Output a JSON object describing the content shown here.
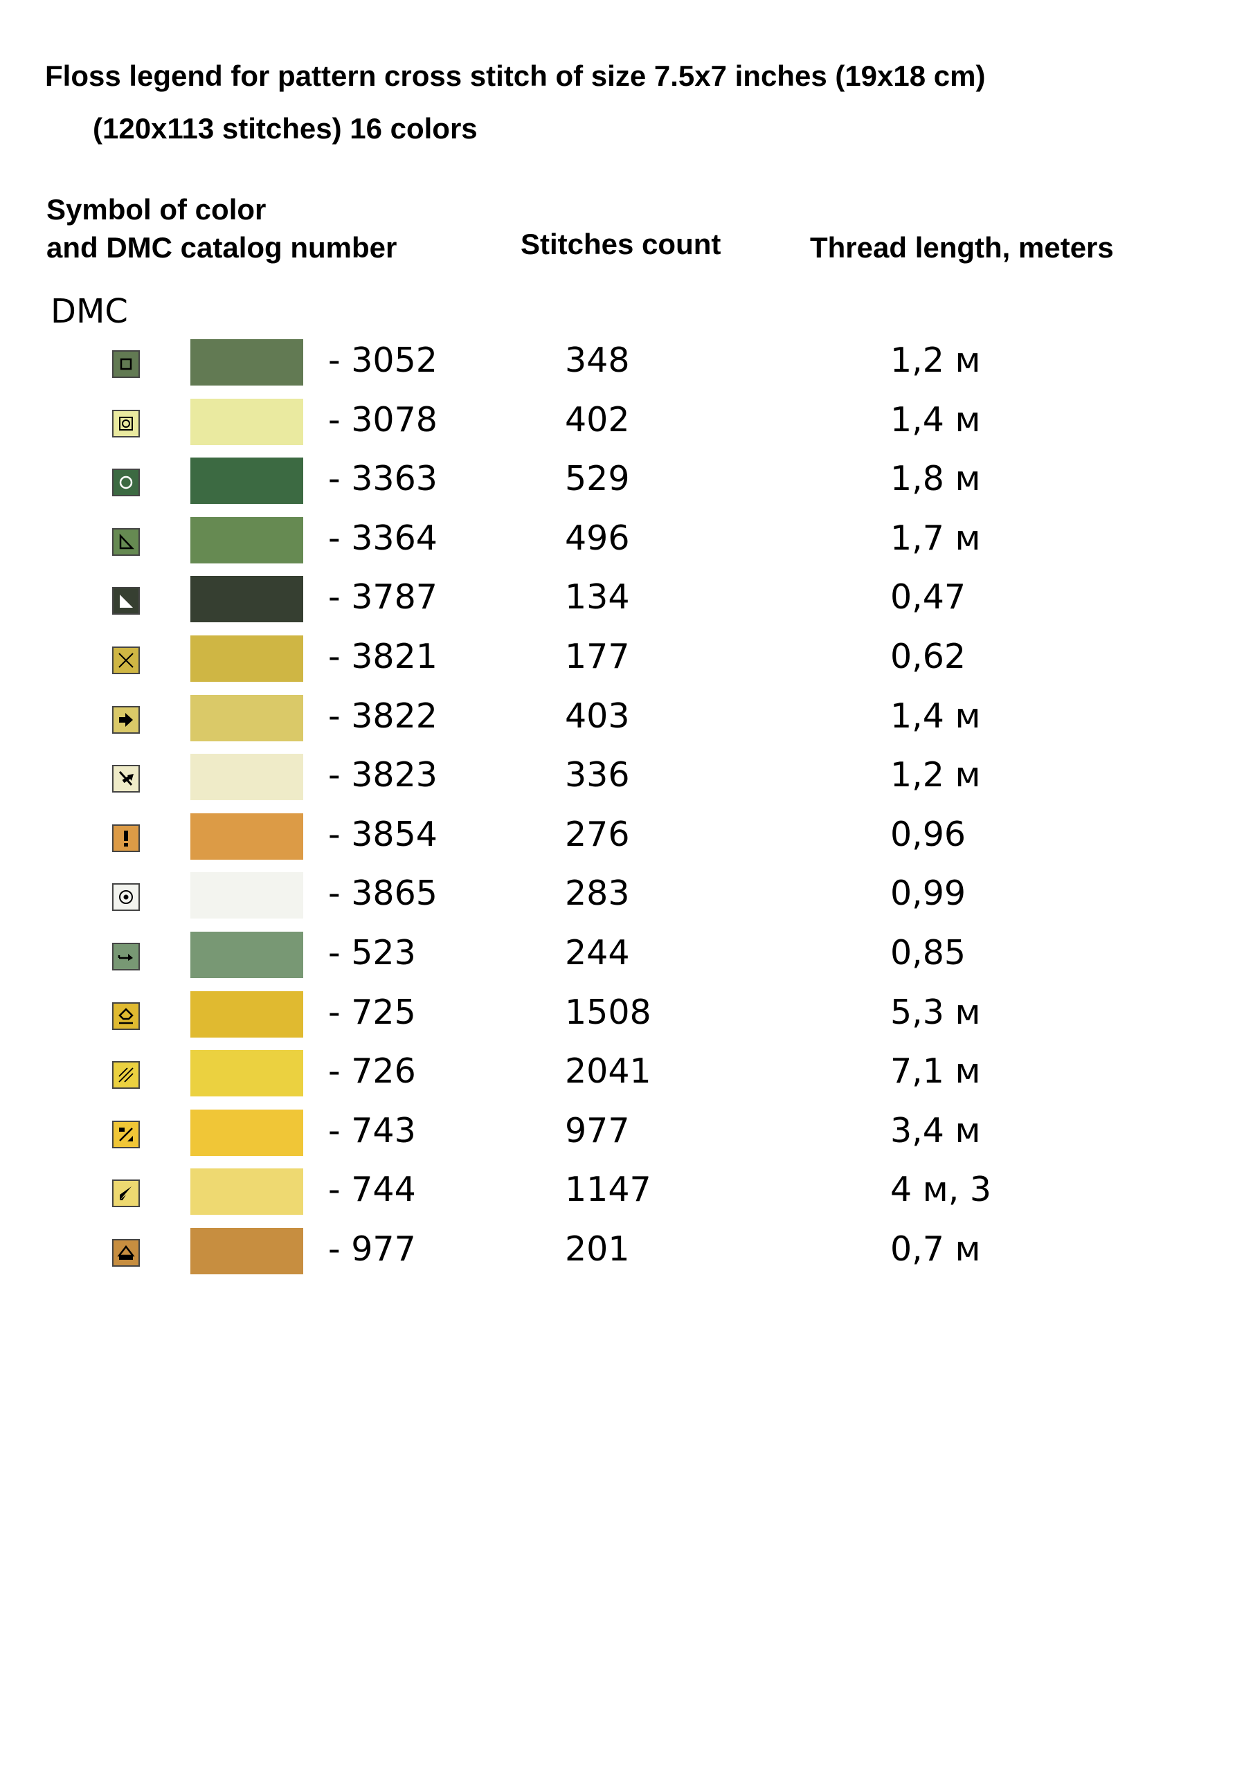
{
  "title_line1": "Floss legend for pattern cross stitch of size 7.5x7 inches (19x18 cm)",
  "title_line2": "(120x113 stitches) 16 colors",
  "headers": {
    "symbol_line1": "Symbol of color",
    "symbol_line2": "and DMC catalog number",
    "stitches": "Stitches count",
    "thread": "Thread length, meters"
  },
  "brand": "DMC",
  "rows": [
    {
      "code": "- 3052",
      "count": "348",
      "length": "1,2 м",
      "color": "#627a53",
      "icon": "square-icon"
    },
    {
      "code": "- 3078",
      "count": "402",
      "length": "1,4 м",
      "color": "#eaeaa0",
      "icon": "boxed-circle-icon"
    },
    {
      "code": "- 3363",
      "count": "529",
      "length": "1,8 м",
      "color": "#3c6a42",
      "icon": "circle-icon"
    },
    {
      "code": "- 3364",
      "count": "496",
      "length": "1,7 м",
      "color": "#668a52",
      "icon": "triangle-icon"
    },
    {
      "code": "- 3787",
      "count": "134",
      "length": "0,47",
      "color": "#363f31",
      "icon": "filled-triangle-icon"
    },
    {
      "code": "- 3821",
      "count": "177",
      "length": "0,62",
      "color": "#cfb644",
      "icon": "cross-icon"
    },
    {
      "code": "- 3822",
      "count": "403",
      "length": "1,4 м",
      "color": "#dac968",
      "icon": "arrow-right-icon"
    },
    {
      "code": "- 3823",
      "count": "336",
      "length": "1,2 м",
      "color": "#efebc8",
      "icon": "diagonal-arrow-icon"
    },
    {
      "code": "- 3854",
      "count": "276",
      "length": "0,96",
      "color": "#dc9b46",
      "icon": "exclamation-icon"
    },
    {
      "code": "- 3865",
      "count": "283",
      "length": "0,99",
      "color": "#f3f4ef",
      "icon": "dot-circle-icon"
    },
    {
      "code": "- 523",
      "count": "244",
      "length": "0,85",
      "color": "#789874",
      "icon": "hook-arrow-icon"
    },
    {
      "code": "- 725",
      "count": "1508",
      "length": "5,3 м",
      "color": "#e0ba30",
      "icon": "pentagon-icon"
    },
    {
      "code": "- 726",
      "count": "2041",
      "length": "7,1 м",
      "color": "#ebd140",
      "icon": "hatch-icon"
    },
    {
      "code": "- 743",
      "count": "977",
      "length": "3,4 м",
      "color": "#f0c637",
      "icon": "percent-icon"
    },
    {
      "code": "- 744",
      "count": "1147",
      "length": "4 м, 3",
      "color": "#eed971",
      "icon": "wedge-icon"
    },
    {
      "code": "- 977",
      "count": "201",
      "length": "0,7 м",
      "color": "#c78e40",
      "icon": "house-icon"
    }
  ]
}
